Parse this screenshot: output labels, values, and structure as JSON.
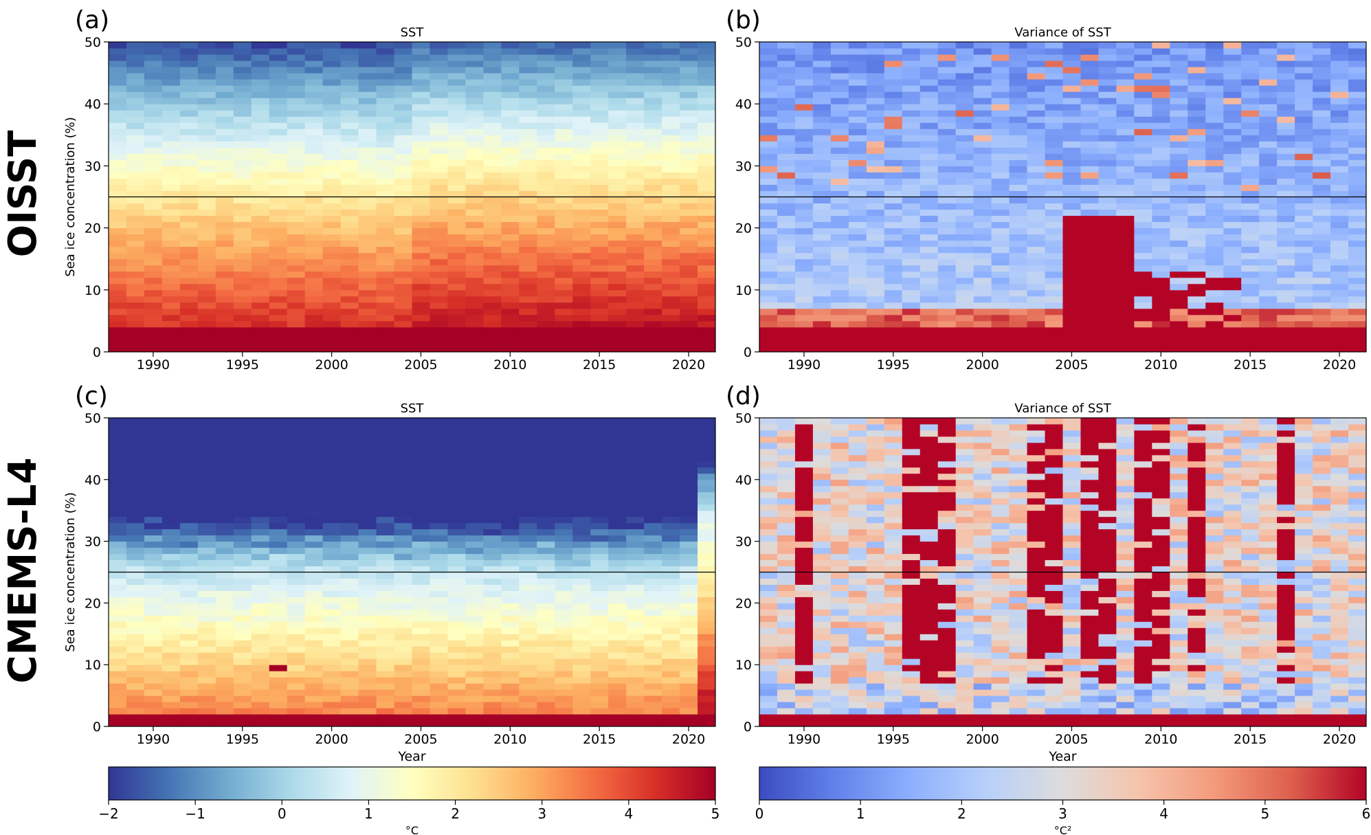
{
  "row_labels": [
    "OISST",
    "CMEMS-L4"
  ],
  "chart_data": [
    {
      "type": "heatmap",
      "panel_label": "(a)",
      "title": "SST",
      "xlabel": "",
      "ylabel": "Sea ice concentration (%)",
      "xlim": [
        1988,
        2022
      ],
      "ylim": [
        0,
        50
      ],
      "xticks": [
        1990,
        1995,
        2000,
        2005,
        2010,
        2015,
        2020
      ],
      "yticks": [
        0,
        10,
        20,
        30,
        40,
        50
      ],
      "colorbar": "sst",
      "reference_line_y": 25,
      "year_start": 1988,
      "year_end": 2021,
      "bin_start": 0,
      "bin_width": 1,
      "bin_count": 50,
      "surface": "a",
      "value_range": [
        -2,
        5
      ]
    },
    {
      "type": "heatmap",
      "panel_label": "(b)",
      "title": "Variance of SST",
      "xlabel": "",
      "ylabel": "",
      "xlim": [
        1988,
        2022
      ],
      "ylim": [
        0,
        50
      ],
      "xticks": [
        1990,
        1995,
        2000,
        2005,
        2010,
        2015,
        2020
      ],
      "yticks": [
        0,
        10,
        20,
        30,
        40,
        50
      ],
      "colorbar": "var",
      "reference_line_y": 25,
      "year_start": 1988,
      "year_end": 2021,
      "bin_start": 0,
      "bin_width": 1,
      "bin_count": 50,
      "surface": "b",
      "value_range": [
        0,
        6
      ]
    },
    {
      "type": "heatmap",
      "panel_label": "(c)",
      "title": "SST",
      "xlabel": "Year",
      "ylabel": "Sea ice concentration (%)",
      "xlim": [
        1988,
        2022
      ],
      "ylim": [
        0,
        50
      ],
      "xticks": [
        1990,
        1995,
        2000,
        2005,
        2010,
        2015,
        2020
      ],
      "yticks": [
        0,
        10,
        20,
        30,
        40,
        50
      ],
      "colorbar": "sst",
      "reference_line_y": 25,
      "year_start": 1988,
      "year_end": 2021,
      "bin_start": 0,
      "bin_width": 1,
      "bin_count": 50,
      "surface": "c",
      "value_range": [
        -2,
        5
      ]
    },
    {
      "type": "heatmap",
      "panel_label": "(d)",
      "title": "Variance of SST",
      "xlabel": "Year",
      "ylabel": "",
      "xlim": [
        1988,
        2022
      ],
      "ylim": [
        0,
        50
      ],
      "xticks": [
        1990,
        1995,
        2000,
        2005,
        2010,
        2015,
        2020
      ],
      "yticks": [
        0,
        10,
        20,
        30,
        40,
        50
      ],
      "colorbar": "var",
      "reference_line_y": 25,
      "year_start": 1988,
      "year_end": 2021,
      "bin_start": 0,
      "bin_width": 1,
      "bin_count": 50,
      "surface": "d",
      "value_range": [
        0,
        6
      ]
    }
  ],
  "colorbars": {
    "sst": {
      "min": -2,
      "max": 5,
      "ticks": [
        -2,
        -1,
        0,
        1,
        2,
        3,
        4,
        5
      ],
      "tick_labels": [
        "−2",
        "−1",
        "0",
        "1",
        "2",
        "3",
        "4",
        "5"
      ],
      "label": "°C",
      "colormap": "RdYlBu_r",
      "stops": [
        "#313695",
        "#4575b4",
        "#74add1",
        "#abd9e9",
        "#e0f3f8",
        "#ffffbf",
        "#fee090",
        "#fdae61",
        "#f46d43",
        "#d73027",
        "#a50026"
      ]
    },
    "var": {
      "min": 0,
      "max": 6,
      "ticks": [
        0,
        1,
        2,
        3,
        4,
        5,
        6
      ],
      "tick_labels": [
        "0",
        "1",
        "2",
        "3",
        "4",
        "5",
        "6"
      ],
      "label": "°C²",
      "colormap": "coolwarm",
      "stops": [
        "#3b4cc0",
        "#6282ea",
        "#8db0fe",
        "#b8d0f9",
        "#dddcdc",
        "#f5c4ac",
        "#f49a7b",
        "#de604d",
        "#b40426"
      ]
    }
  }
}
